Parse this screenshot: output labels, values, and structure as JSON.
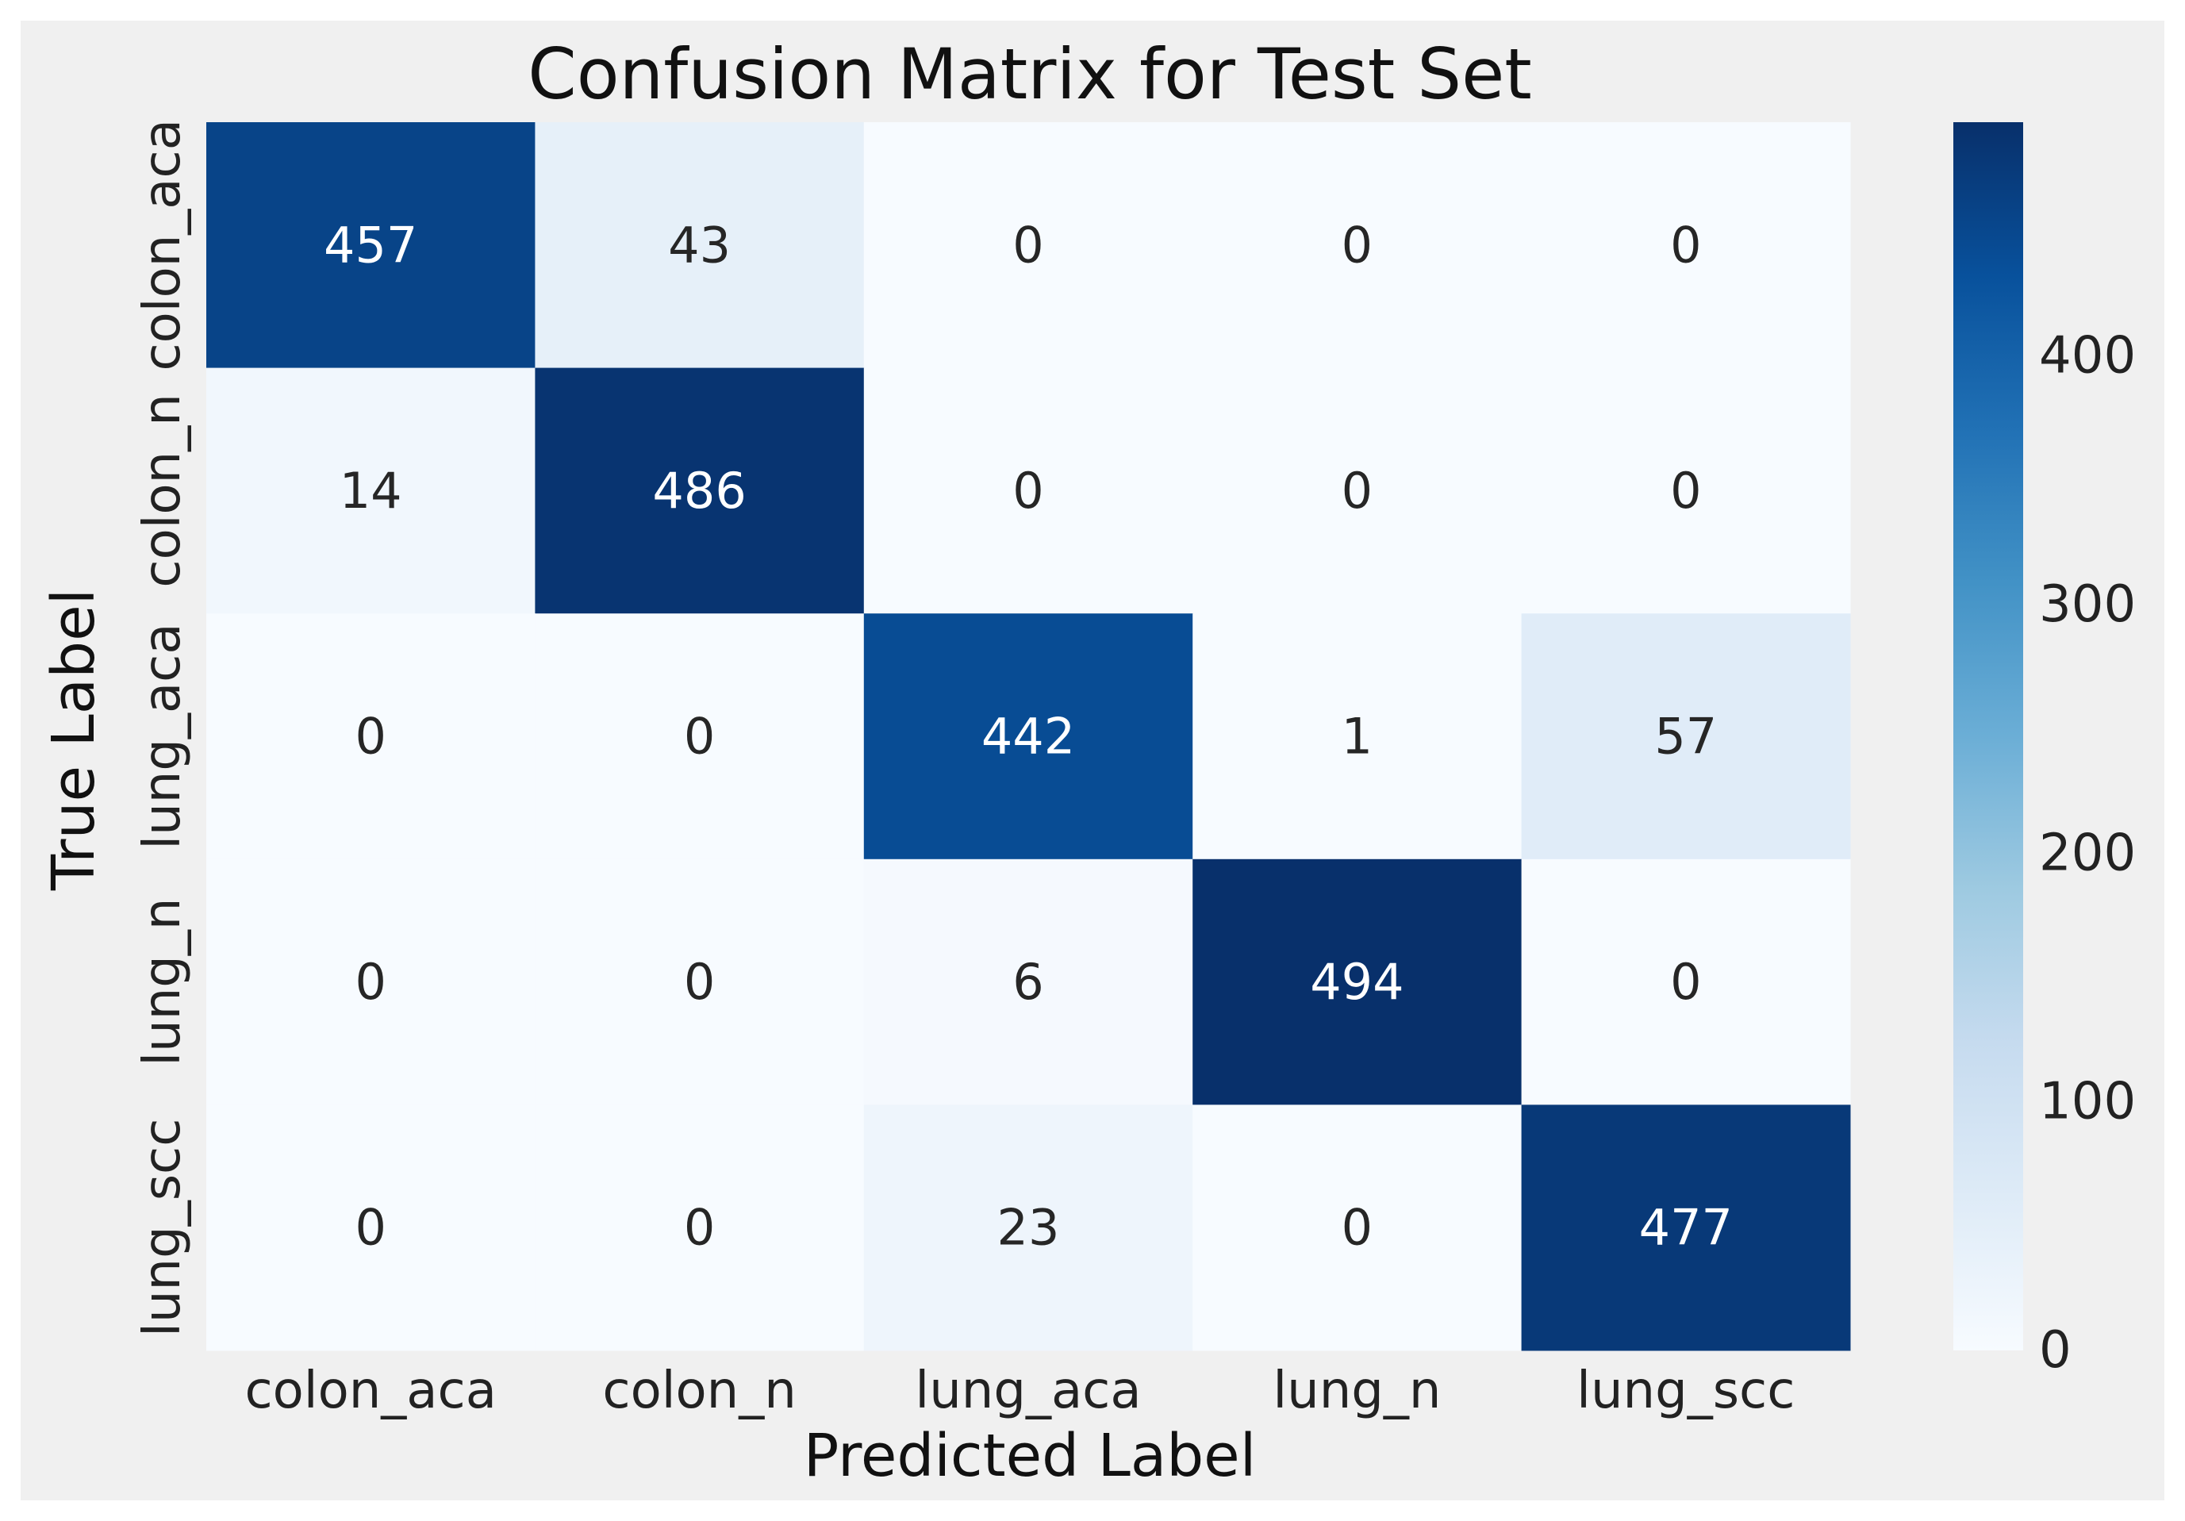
{
  "chart_data": {
    "type": "heatmap",
    "title": "Confusion Matrix for Test Set",
    "xlabel": "Predicted Label",
    "ylabel": "True Label",
    "x_categories": [
      "colon_aca",
      "colon_n",
      "lung_aca",
      "lung_n",
      "lung_scc"
    ],
    "y_categories": [
      "colon_aca",
      "colon_n",
      "lung_aca",
      "lung_n",
      "lung_scc"
    ],
    "values": [
      [
        457,
        43,
        0,
        0,
        0
      ],
      [
        14,
        486,
        0,
        0,
        0
      ],
      [
        0,
        0,
        442,
        1,
        57
      ],
      [
        0,
        0,
        6,
        494,
        0
      ],
      [
        0,
        0,
        23,
        0,
        477
      ]
    ],
    "colormap": "Blues",
    "colorbar": {
      "vmin": 0,
      "vmax": 494,
      "ticks": [
        0,
        100,
        200,
        300,
        400
      ]
    },
    "colors": {
      "figure_background": "#f0f0f0",
      "text_dark": "#262626",
      "text_light": "#ffffff"
    }
  }
}
